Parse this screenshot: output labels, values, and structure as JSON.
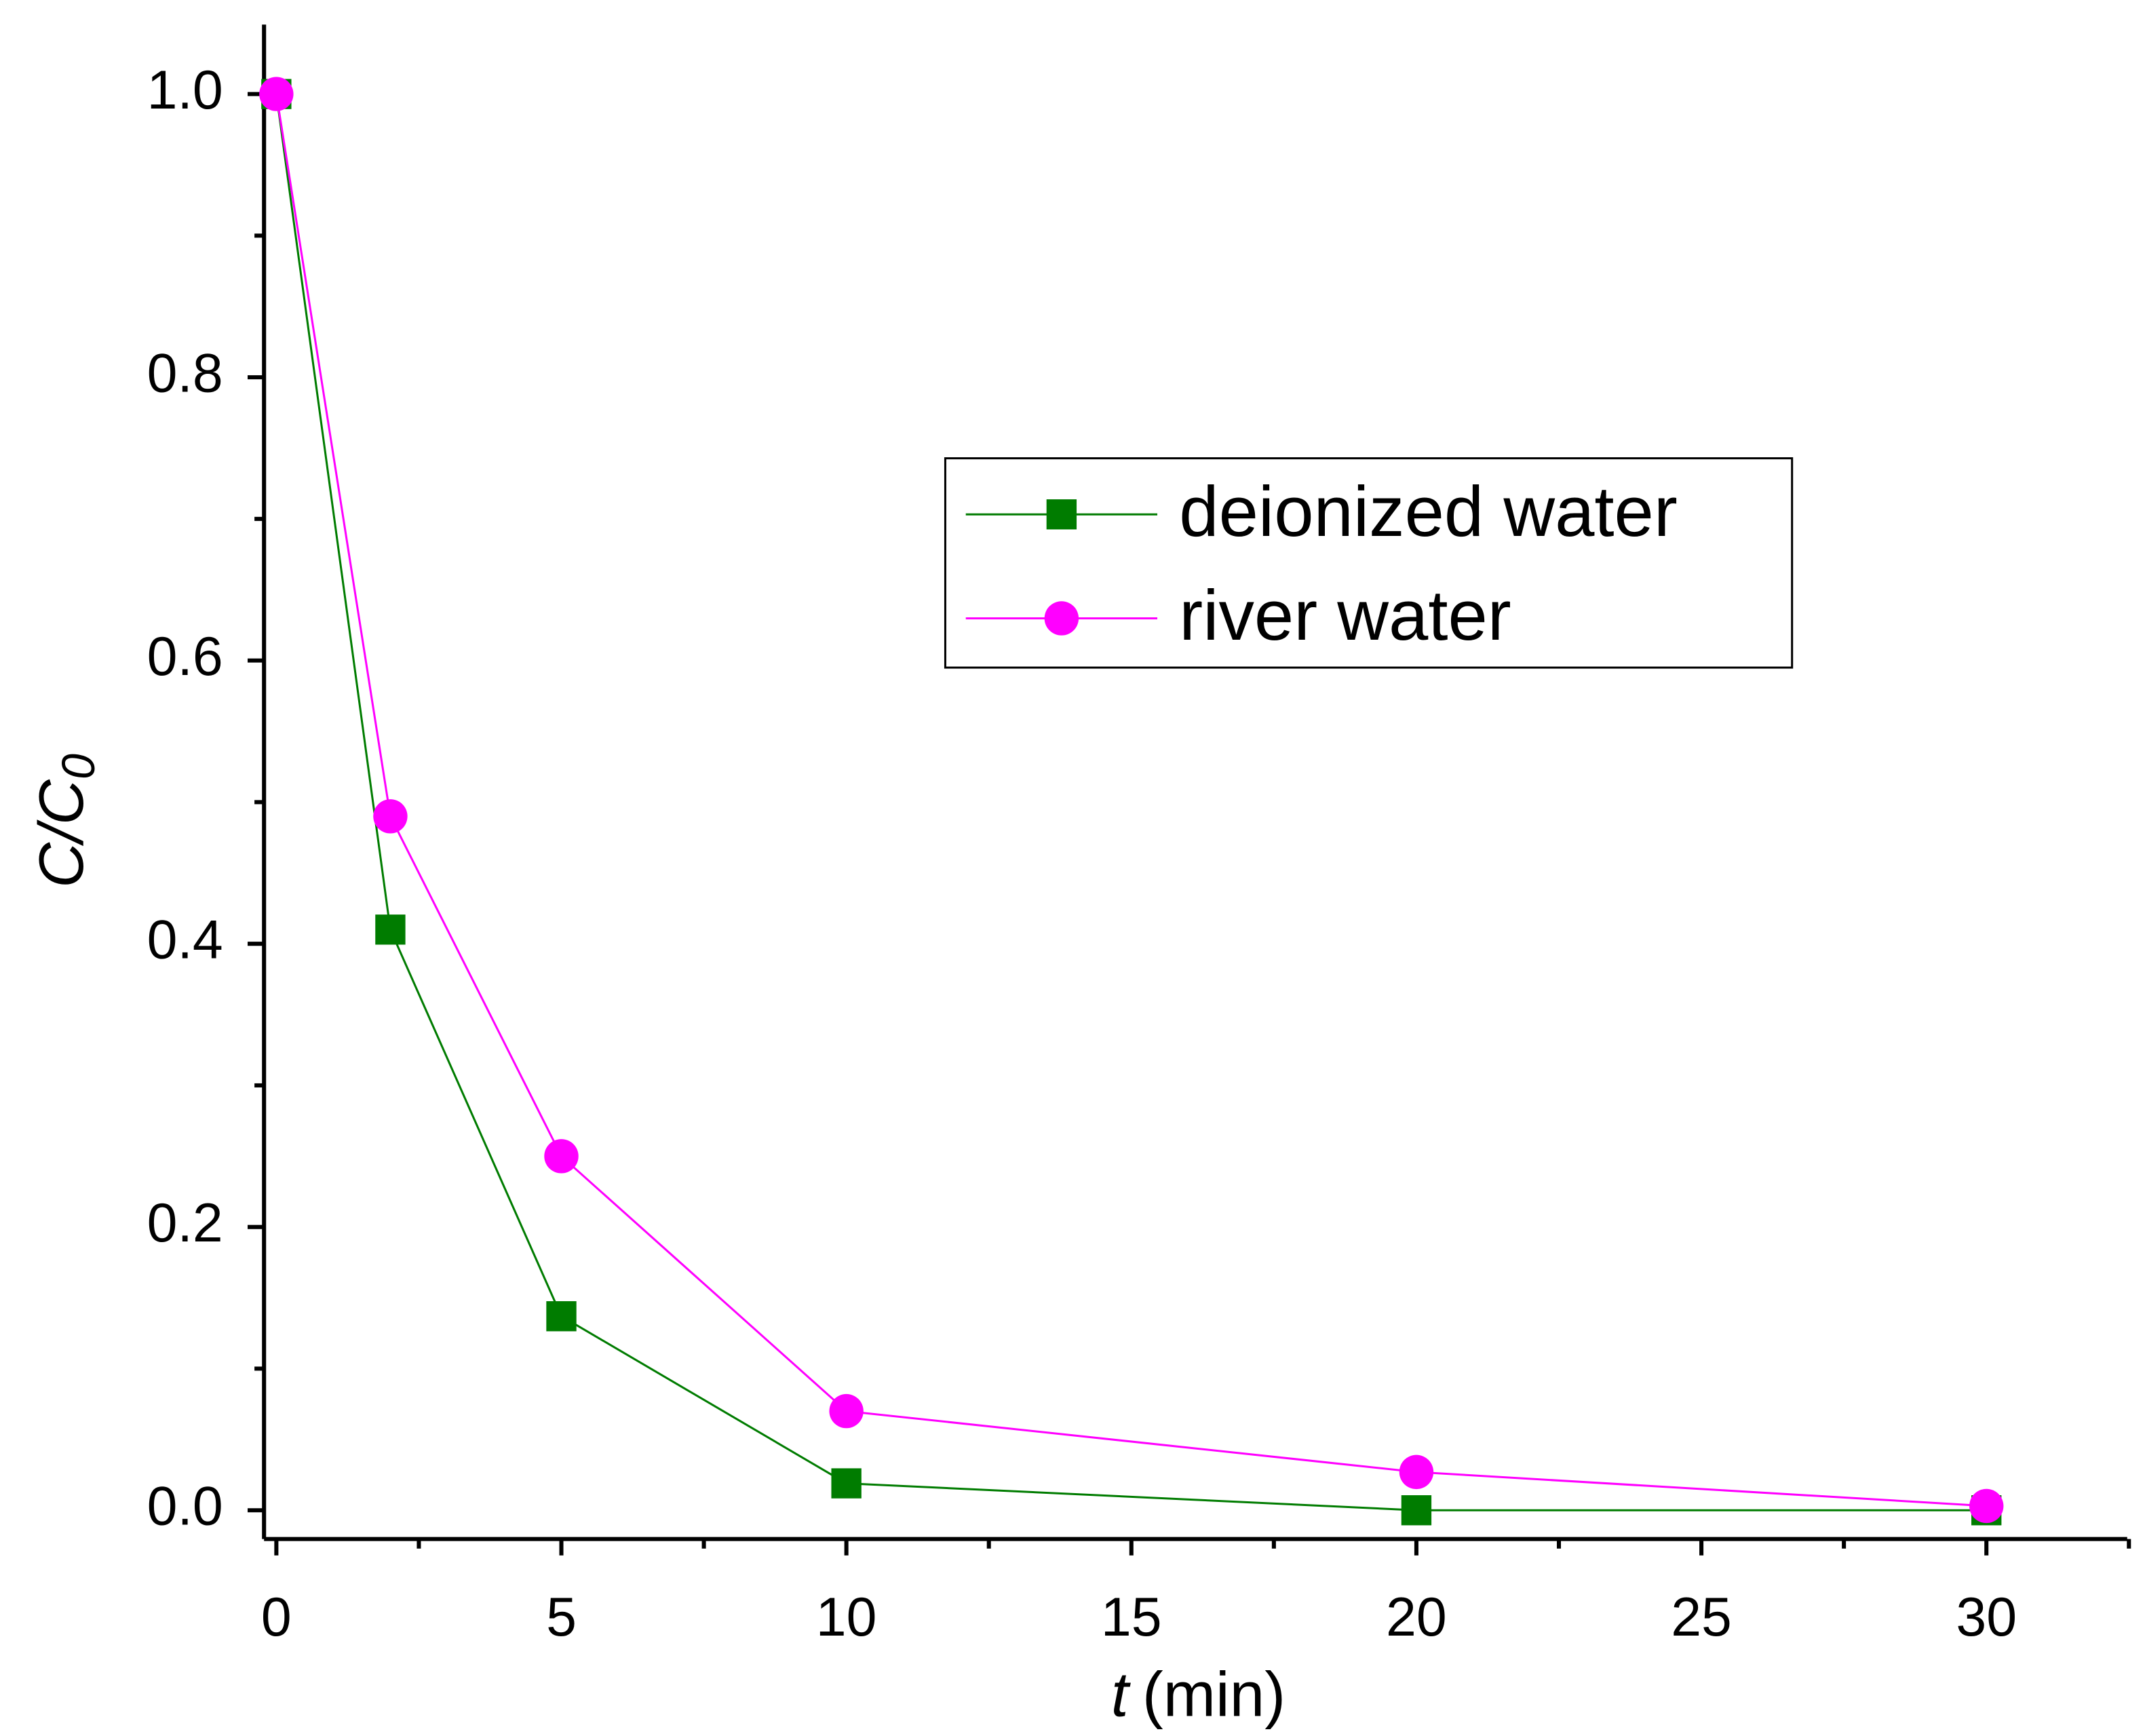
{
  "chart_data": {
    "type": "line",
    "xlabel": [
      "t",
      "(min)"
    ],
    "ylabel": [
      "C/C",
      "0"
    ],
    "xlim": [
      -0.216,
      32.47
    ],
    "ylim": [
      -0.0203,
      1.049
    ],
    "xticks": [
      0,
      5,
      10,
      15,
      20,
      25,
      30
    ],
    "xminorticks": [
      2.5,
      7.5,
      12.5,
      17.5,
      22.5,
      27.5,
      32.5
    ],
    "yticks": [
      {
        "value": 0,
        "label": "0.0"
      },
      0.2,
      0.4,
      0.6,
      0.8,
      {
        "value": 1,
        "label": "1.0"
      }
    ],
    "yminorticks": [
      0.1,
      0.3,
      0.5,
      0.7,
      0.9
    ],
    "legend": "upper right",
    "series": [
      {
        "name": "deionized water",
        "color": "#007c00",
        "marker": "square",
        "x": [
          0,
          2,
          5,
          10,
          20,
          30
        ],
        "values": [
          1.0,
          0.41,
          0.137,
          0.019,
          0.0,
          0.0
        ]
      },
      {
        "name": "river water",
        "color": "#ff00ff",
        "marker": "circle",
        "x": [
          0,
          2,
          5,
          10,
          20,
          30
        ],
        "values": [
          1.0,
          0.49,
          0.25,
          0.07,
          0.027,
          0.003
        ]
      }
    ]
  }
}
